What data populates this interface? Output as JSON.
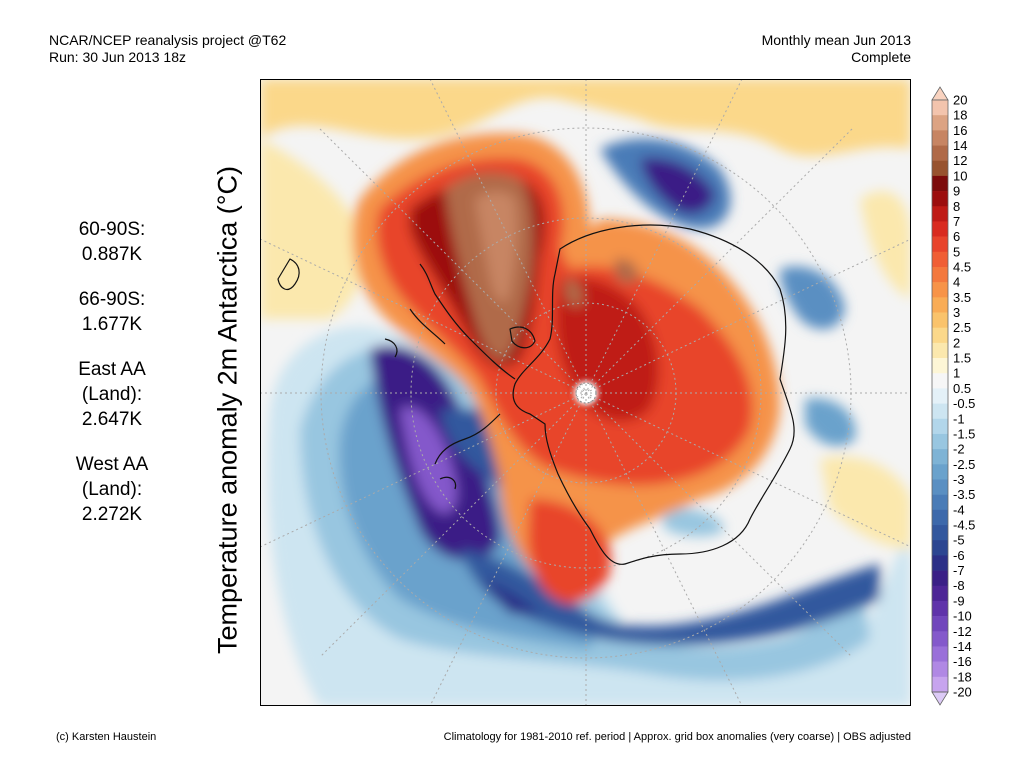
{
  "header": {
    "left_line1": "NCAR/NCEP reanalysis project @T62",
    "left_line2": "Run: 30 Jun 2013 18z",
    "right_line1": "Monthly mean Jun 2013",
    "right_line2": "Complete"
  },
  "vertical_title": "Temperature anomaly 2m Antarctica (°C)",
  "stats": [
    {
      "label": "60-90S:",
      "value": "0.887K"
    },
    {
      "label": "66-90S:",
      "value": "1.677K"
    },
    {
      "label": "East AA\n(Land):",
      "value": "2.647K"
    },
    {
      "label": "West AA\n(Land):",
      "value": "2.272K"
    }
  ],
  "colorbar": {
    "labels": [
      "20",
      "18",
      "16",
      "14",
      "12",
      "10",
      "9",
      "8",
      "7",
      "6",
      "5",
      "4.5",
      "4",
      "3.5",
      "3",
      "2.5",
      "2",
      "1.5",
      "1",
      "0.5",
      "-0.5",
      "-1",
      "-1.5",
      "-2",
      "-2.5",
      "-3",
      "-3.5",
      "-4",
      "-4.5",
      "-5",
      "-6",
      "-7",
      "-8",
      "-9",
      "-10",
      "-12",
      "-14",
      "-16",
      "-18",
      "-20"
    ],
    "colors": [
      "#f3c4ad",
      "#dca383",
      "#c78563",
      "#b06a48",
      "#98532f",
      "#7c0c0c",
      "#9c0e0e",
      "#bf1b16",
      "#d92b20",
      "#e8442c",
      "#f05e35",
      "#f4783d",
      "#f79348",
      "#f9ac56",
      "#fac36b",
      "#fbd88a",
      "#fbe8ad",
      "#fdf6d6",
      "#f6f6f6",
      "#e4f1f8",
      "#cde5f1",
      "#b2d6ea",
      "#98c6e0",
      "#7eb3d5",
      "#6aa2cc",
      "#5a8fc2",
      "#4a7cb7",
      "#3d69ab",
      "#33589e",
      "#2b4591",
      "#2b2f87",
      "#3a1f86",
      "#4d2596",
      "#5f33aa",
      "#7146bc",
      "#8459cb",
      "#9a70d9",
      "#b088e4",
      "#c7a4ee"
    ],
    "top_arrow_color": "#f9d3c0",
    "bottom_arrow_color": "#dccaf6"
  },
  "footer": {
    "left": "(c) Karsten Haustein",
    "right": "Climatology for 1981-2010 ref. period | Approx. grid box anomalies (very coarse) | OBS adjusted"
  }
}
